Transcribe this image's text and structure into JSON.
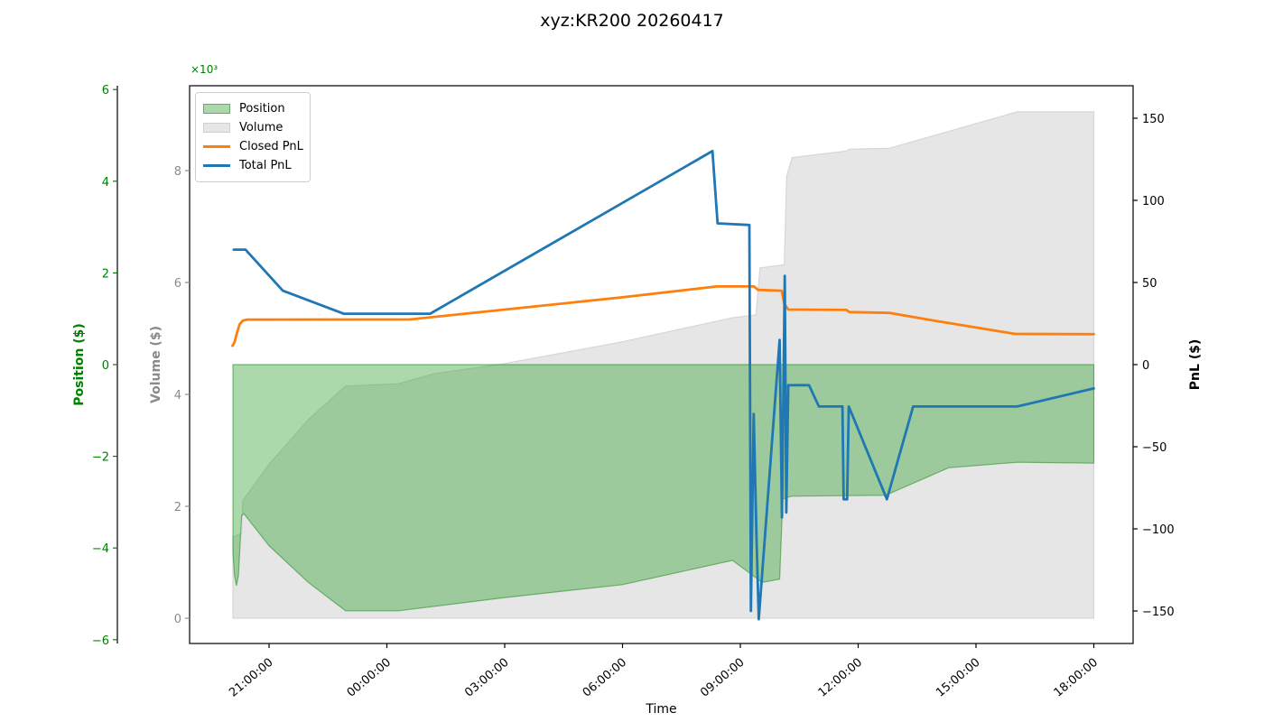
{
  "title": "xyz:KR200 20260417",
  "legend": {
    "items": [
      {
        "label": "Position",
        "type": "patch",
        "fill": "rgba(44,160,44,0.4)",
        "border": "#6aa86a"
      },
      {
        "label": "Volume",
        "type": "patch",
        "fill": "#e6e6e6",
        "border": "#cfcfcf"
      },
      {
        "label": "Closed PnL",
        "type": "line",
        "fill": "#ff7f0e",
        "border": "#ff7f0e"
      },
      {
        "label": "Total PnL",
        "type": "line",
        "fill": "#1f77b4",
        "border": "#1f77b4"
      }
    ]
  },
  "axes": {
    "position": {
      "label": "Position ($)",
      "color": "#008000",
      "ticks": [
        {
          "v": 6,
          "label": "6"
        },
        {
          "v": 4,
          "label": "4"
        },
        {
          "v": 2,
          "label": "2"
        },
        {
          "v": 0,
          "label": "0"
        },
        {
          "v": -2,
          "label": "−2"
        },
        {
          "v": -4,
          "label": "−4"
        },
        {
          "v": -6,
          "label": "−6"
        }
      ]
    },
    "volume": {
      "label": "Volume ($)",
      "color": "#8a8a8a",
      "multiplier": "×10³",
      "ticks": [
        {
          "v": 8,
          "label": "8"
        },
        {
          "v": 6,
          "label": "6"
        },
        {
          "v": 4,
          "label": "4"
        },
        {
          "v": 2,
          "label": "2"
        },
        {
          "v": 0,
          "label": "0"
        }
      ]
    },
    "pnl": {
      "label": "PnL ($)",
      "color": "#000000",
      "ticks": [
        {
          "v": 150,
          "label": "150"
        },
        {
          "v": 100,
          "label": "100"
        },
        {
          "v": 50,
          "label": "50"
        },
        {
          "v": 0,
          "label": "0"
        },
        {
          "v": -50,
          "label": "−50"
        },
        {
          "v": -100,
          "label": "−100"
        },
        {
          "v": -150,
          "label": "−150"
        }
      ]
    },
    "time": {
      "label": "Time",
      "ticks": [
        {
          "t": 1,
          "label": "21:00:00"
        },
        {
          "t": 4,
          "label": "00:00:00"
        },
        {
          "t": 7,
          "label": "03:00:00"
        },
        {
          "t": 10,
          "label": "06:00:00"
        },
        {
          "t": 13,
          "label": "09:00:00"
        },
        {
          "t": 16,
          "label": "12:00:00"
        },
        {
          "t": 19,
          "label": "15:00:00"
        },
        {
          "t": 22,
          "label": "18:00:00"
        }
      ]
    }
  },
  "chart_data": {
    "type": "line",
    "title": "xyz:KR200 20260417",
    "xlabel": "Time",
    "x_unit": "hours_since_20:00",
    "x_axis_range_hours": [
      -1.02,
      23.0
    ],
    "axis_ranges": {
      "position": [
        -6.1,
        6.1
      ],
      "volume_thousands": [
        0,
        9.5
      ],
      "pnl": [
        -170,
        170
      ]
    },
    "legend_position": "upper left",
    "series": [
      {
        "name": "Volume",
        "kind": "area",
        "axis": "volume",
        "color": "#e6e6e6",
        "stroke": "#d6d6d6",
        "baseline": 0,
        "points": [
          [
            0.08,
            1.45
          ],
          [
            0.3,
            1.52
          ],
          [
            0.33,
            2.1
          ],
          [
            1.0,
            2.75
          ],
          [
            2.0,
            3.55
          ],
          [
            2.95,
            4.15
          ],
          [
            4.3,
            4.19
          ],
          [
            5.2,
            4.37
          ],
          [
            7.0,
            4.55
          ],
          [
            10.0,
            4.94
          ],
          [
            12.8,
            5.37
          ],
          [
            13.4,
            5.42
          ],
          [
            13.5,
            6.26
          ],
          [
            13.95,
            6.3
          ],
          [
            14.12,
            6.32
          ],
          [
            14.18,
            7.9
          ],
          [
            14.32,
            8.23
          ],
          [
            15.7,
            8.35
          ],
          [
            15.78,
            8.38
          ],
          [
            16.8,
            8.4
          ],
          [
            20.05,
            9.05
          ],
          [
            22.0,
            9.05
          ]
        ]
      },
      {
        "name": "Position",
        "kind": "area",
        "axis": "position",
        "color": "rgba(44,160,44,0.4)",
        "stroke": "rgba(34,139,34,0.55)",
        "baseline": 0,
        "points": [
          [
            0.08,
            -4.1
          ],
          [
            0.12,
            -4.6
          ],
          [
            0.17,
            -4.82
          ],
          [
            0.22,
            -4.6
          ],
          [
            0.3,
            -3.3
          ],
          [
            0.36,
            -3.25
          ],
          [
            1.0,
            -3.95
          ],
          [
            2.0,
            -4.75
          ],
          [
            2.95,
            -5.37
          ],
          [
            4.3,
            -5.37
          ],
          [
            7.0,
            -5.08
          ],
          [
            10.0,
            -4.8
          ],
          [
            12.8,
            -4.27
          ],
          [
            13.4,
            -4.65
          ],
          [
            13.55,
            -4.75
          ],
          [
            14.0,
            -4.68
          ],
          [
            14.08,
            -2.93
          ],
          [
            14.3,
            -2.87
          ],
          [
            16.7,
            -2.85
          ],
          [
            18.3,
            -2.25
          ],
          [
            20.05,
            -2.13
          ],
          [
            22.0,
            -2.15
          ]
        ]
      },
      {
        "name": "Closed PnL",
        "kind": "line",
        "axis": "pnl",
        "color": "#ff7f0e",
        "width": 2.8,
        "points": [
          [
            0.07,
            11.5
          ],
          [
            0.12,
            13.5
          ],
          [
            0.18,
            19.0
          ],
          [
            0.25,
            24.5
          ],
          [
            0.33,
            26.8
          ],
          [
            0.45,
            27.4
          ],
          [
            4.6,
            27.5
          ],
          [
            6.56,
            32.4
          ],
          [
            10.0,
            41.0
          ],
          [
            12.4,
            47.6
          ],
          [
            13.35,
            47.6
          ],
          [
            13.45,
            45.5
          ],
          [
            14.05,
            45.0
          ],
          [
            14.12,
            37.0
          ],
          [
            14.22,
            33.5
          ],
          [
            15.7,
            33.3
          ],
          [
            15.78,
            32.0
          ],
          [
            16.8,
            31.5
          ],
          [
            18.0,
            26.5
          ],
          [
            20.0,
            18.7
          ],
          [
            22.0,
            18.5
          ]
        ]
      },
      {
        "name": "Total PnL",
        "kind": "line",
        "axis": "pnl",
        "color": "#1f77b4",
        "width": 2.8,
        "points": [
          [
            0.1,
            70
          ],
          [
            0.4,
            70
          ],
          [
            1.35,
            45
          ],
          [
            2.9,
            31
          ],
          [
            5.1,
            31
          ],
          [
            12.29,
            130
          ],
          [
            12.42,
            86
          ],
          [
            13.23,
            85
          ],
          [
            13.27,
            -150
          ],
          [
            13.34,
            -30
          ],
          [
            13.41,
            -103
          ],
          [
            13.47,
            -155
          ],
          [
            14.0,
            15
          ],
          [
            14.06,
            -93
          ],
          [
            14.13,
            54
          ],
          [
            14.17,
            -90
          ],
          [
            14.22,
            -12.5
          ],
          [
            14.75,
            -12.5
          ],
          [
            15.0,
            -25.5
          ],
          [
            15.6,
            -25.5
          ],
          [
            15.63,
            -82
          ],
          [
            15.72,
            -82
          ],
          [
            15.76,
            -25.5
          ],
          [
            16.73,
            -82
          ],
          [
            17.4,
            -25.5
          ],
          [
            20.05,
            -25.5
          ],
          [
            22.0,
            -14.5
          ]
        ]
      }
    ]
  }
}
